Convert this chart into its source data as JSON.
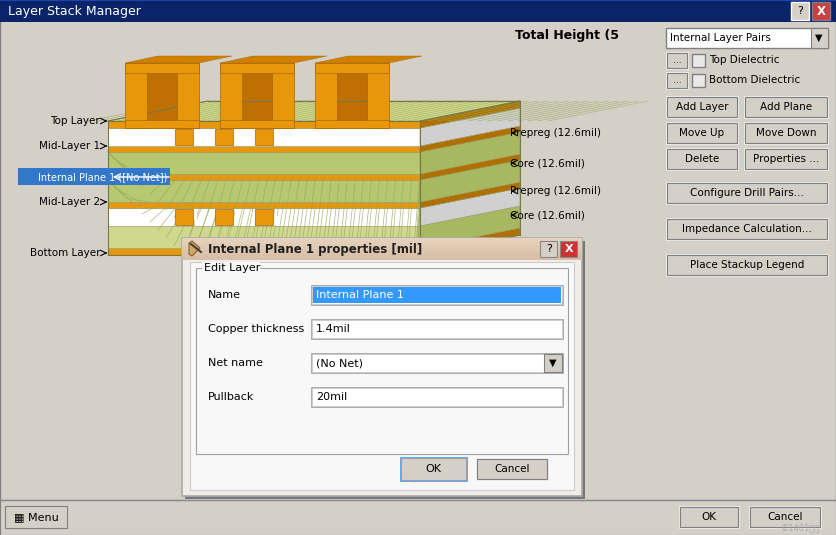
{
  "title": "Layer Stack Manager",
  "dialog_title": "Internal Plane 1 properties [mil]",
  "layer_labels_left": [
    "Top Layer",
    "Mid-Layer 1",
    "Internal Plane 1 ([No Net])",
    "Mid-Layer 2",
    "Bottom Layer"
  ],
  "right_labels": [
    "Prepreg (12.6mil)",
    "Core (12.6mil)",
    "Prepreg (12.6mil)",
    "Core (12.6mil)"
  ],
  "total_height_text": "Total Height (5",
  "dropdown_text": "Internal Layer Pairs",
  "top_dielectric": "Top Dielectric",
  "bottom_dielectric": "Bottom Dielectric",
  "edit_layer_label": "Edit Layer",
  "fields": [
    {
      "label": "Name",
      "value": "Internal Plane 1",
      "selected": true,
      "dropdown": false
    },
    {
      "label": "Copper thickness",
      "value": "1.4mil",
      "selected": false,
      "dropdown": false
    },
    {
      "label": "Net name",
      "value": "(No Net)",
      "selected": false,
      "dropdown": true
    },
    {
      "label": "Pullback",
      "value": "20mil",
      "selected": false,
      "dropdown": false
    }
  ],
  "win_bg": "#d4d0c8",
  "titlebar_color": "#0a246a",
  "orange": "#e8960a",
  "green_dielectric": "#d0d890",
  "green_hatch": "#b8c870",
  "green_right": "#a8b860",
  "copper_right": "#b07000",
  "white_layer": "#ffffff",
  "dlg_titlebar": "#e8d8c8",
  "dlg_bg": "#f0ece8",
  "highlight_blue": "#3377cc",
  "field_selected_bg": "#3399ff",
  "ok_border": "#4499ff"
}
